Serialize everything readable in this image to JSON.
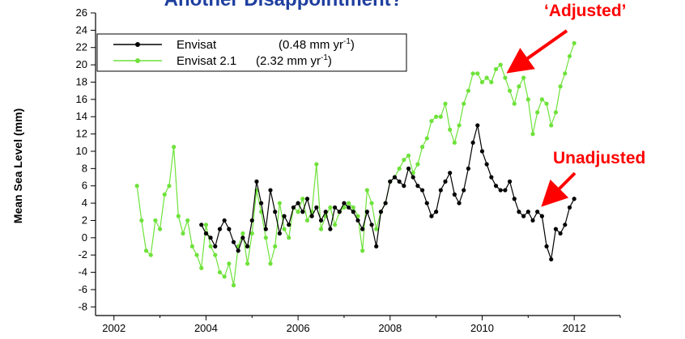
{
  "chart_data": {
    "type": "line",
    "title": "Another Disappointment?",
    "xlabel": "",
    "ylabel": "Mean Sea Level (mm)",
    "xlim": [
      2001.6,
      2013.0
    ],
    "ylim": [
      -9,
      26
    ],
    "x_ticks": [
      2002,
      2004,
      2006,
      2008,
      2010,
      2012
    ],
    "y_ticks": [
      -8,
      -6,
      -4,
      -2,
      0,
      2,
      4,
      6,
      8,
      10,
      12,
      14,
      16,
      18,
      20,
      22,
      24,
      26
    ],
    "grid": false,
    "legend_position": "top-left",
    "series": [
      {
        "name": "Envisat",
        "rate_label": "(0.48 mm yr",
        "color": "#000000",
        "x": [
          2003.9,
          2004.0,
          2004.1,
          2004.2,
          2004.3,
          2004.4,
          2004.5,
          2004.6,
          2004.7,
          2004.8,
          2004.9,
          2005.0,
          2005.1,
          2005.2,
          2005.3,
          2005.4,
          2005.5,
          2005.6,
          2005.7,
          2005.8,
          2005.9,
          2006.0,
          2006.1,
          2006.2,
          2006.3,
          2006.4,
          2006.5,
          2006.6,
          2006.7,
          2006.8,
          2006.9,
          2007.0,
          2007.1,
          2007.2,
          2007.3,
          2007.4,
          2007.5,
          2007.6,
          2007.7,
          2007.8,
          2007.9,
          2008.0,
          2008.1,
          2008.2,
          2008.3,
          2008.4,
          2008.5,
          2008.6,
          2008.7,
          2008.8,
          2008.9,
          2009.0,
          2009.1,
          2009.2,
          2009.3,
          2009.4,
          2009.5,
          2009.6,
          2009.7,
          2009.8,
          2009.9,
          2010.0,
          2010.1,
          2010.2,
          2010.3,
          2010.4,
          2010.5,
          2010.6,
          2010.7,
          2010.8,
          2010.9,
          2011.0,
          2011.1,
          2011.2,
          2011.3,
          2011.4,
          2011.5,
          2011.6,
          2011.7,
          2011.8,
          2011.9,
          2012.0
        ],
        "y": [
          1.5,
          0.5,
          0.0,
          -1.0,
          1.0,
          2.0,
          1.0,
          -0.5,
          -1.5,
          0.0,
          -1.0,
          2.0,
          6.5,
          4.0,
          1.0,
          5.5,
          3.0,
          0.5,
          2.5,
          1.5,
          3.5,
          4.0,
          3.0,
          4.5,
          2.5,
          3.5,
          2.0,
          3.0,
          1.0,
          3.5,
          3.0,
          4.0,
          3.5,
          3.0,
          2.0,
          1.0,
          3.0,
          1.5,
          -1.0,
          3.0,
          4.0,
          6.5,
          7.0,
          6.5,
          6.0,
          8.0,
          7.0,
          6.0,
          5.5,
          4.0,
          2.5,
          3.0,
          5.5,
          6.5,
          7.5,
          5.0,
          4.0,
          5.5,
          8.0,
          11.0,
          13.0,
          10.0,
          8.5,
          7.0,
          6.0,
          5.5,
          5.5,
          6.5,
          4.5,
          3.0,
          2.5,
          3.0,
          2.0,
          3.0,
          2.5,
          -1.0,
          -2.5,
          1.0,
          0.5,
          1.5,
          3.5,
          4.5
        ]
      },
      {
        "name": "Envisat 2.1",
        "rate_label": "(2.32 mm yr",
        "color": "#6ee23a",
        "x": [
          2002.5,
          2002.6,
          2002.7,
          2002.8,
          2002.9,
          2003.0,
          2003.1,
          2003.2,
          2003.3,
          2003.4,
          2003.5,
          2003.6,
          2003.7,
          2003.8,
          2003.9,
          2004.0,
          2004.1,
          2004.2,
          2004.3,
          2004.4,
          2004.5,
          2004.6,
          2004.7,
          2004.8,
          2004.9,
          2005.0,
          2005.1,
          2005.2,
          2005.3,
          2005.4,
          2005.5,
          2005.6,
          2005.7,
          2005.8,
          2005.9,
          2006.0,
          2006.1,
          2006.2,
          2006.3,
          2006.4,
          2006.5,
          2006.6,
          2006.7,
          2006.8,
          2006.9,
          2007.0,
          2007.1,
          2007.2,
          2007.3,
          2007.4,
          2007.5,
          2007.6,
          2007.7,
          2007.8,
          2007.9,
          2008.0,
          2008.1,
          2008.2,
          2008.3,
          2008.4,
          2008.5,
          2008.6,
          2008.7,
          2008.8,
          2008.9,
          2009.0,
          2009.1,
          2009.2,
          2009.3,
          2009.4,
          2009.5,
          2009.6,
          2009.7,
          2009.8,
          2009.9,
          2010.0,
          2010.1,
          2010.2,
          2010.3,
          2010.4,
          2010.5,
          2010.6,
          2010.7,
          2010.8,
          2010.9,
          2011.0,
          2011.1,
          2011.2,
          2011.3,
          2011.4,
          2011.5,
          2011.6,
          2011.7,
          2011.8,
          2011.9,
          2012.0
        ],
        "y": [
          6.0,
          2.0,
          -1.5,
          -2.0,
          2.0,
          1.0,
          5.0,
          6.0,
          10.5,
          2.5,
          0.5,
          2.0,
          -1.0,
          -2.0,
          -3.5,
          1.5,
          -1.0,
          -2.0,
          -4.0,
          -4.5,
          -3.0,
          -5.5,
          -1.0,
          0.5,
          -3.0,
          0.5,
          5.5,
          3.0,
          0.0,
          -3.0,
          -1.0,
          4.0,
          1.0,
          0.0,
          3.5,
          3.0,
          4.5,
          2.0,
          3.0,
          8.5,
          1.0,
          2.5,
          3.5,
          1.5,
          3.0,
          3.5,
          4.0,
          3.5,
          2.5,
          -1.5,
          5.5,
          4.0,
          1.0,
          3.0,
          4.0,
          6.5,
          7.0,
          8.0,
          9.0,
          9.5,
          7.5,
          8.5,
          10.5,
          11.5,
          13.5,
          14.0,
          14.0,
          15.5,
          12.5,
          11.0,
          13.0,
          15.5,
          17.0,
          19.0,
          19.0,
          18.0,
          18.5,
          18.0,
          19.5,
          20.0,
          18.5,
          17.0,
          15.5,
          17.5,
          18.5,
          16.0,
          12.0,
          14.5,
          16.0,
          15.5,
          13.0,
          14.5,
          17.5,
          19.0,
          21.0,
          22.5
        ]
      }
    ],
    "annotations": [
      {
        "text": "‘Adjusted’",
        "color": "#ff0000"
      },
      {
        "text": "Unadjusted",
        "color": "#ff0000"
      }
    ]
  },
  "legend_superscript": "-1",
  "legend_close": ")"
}
